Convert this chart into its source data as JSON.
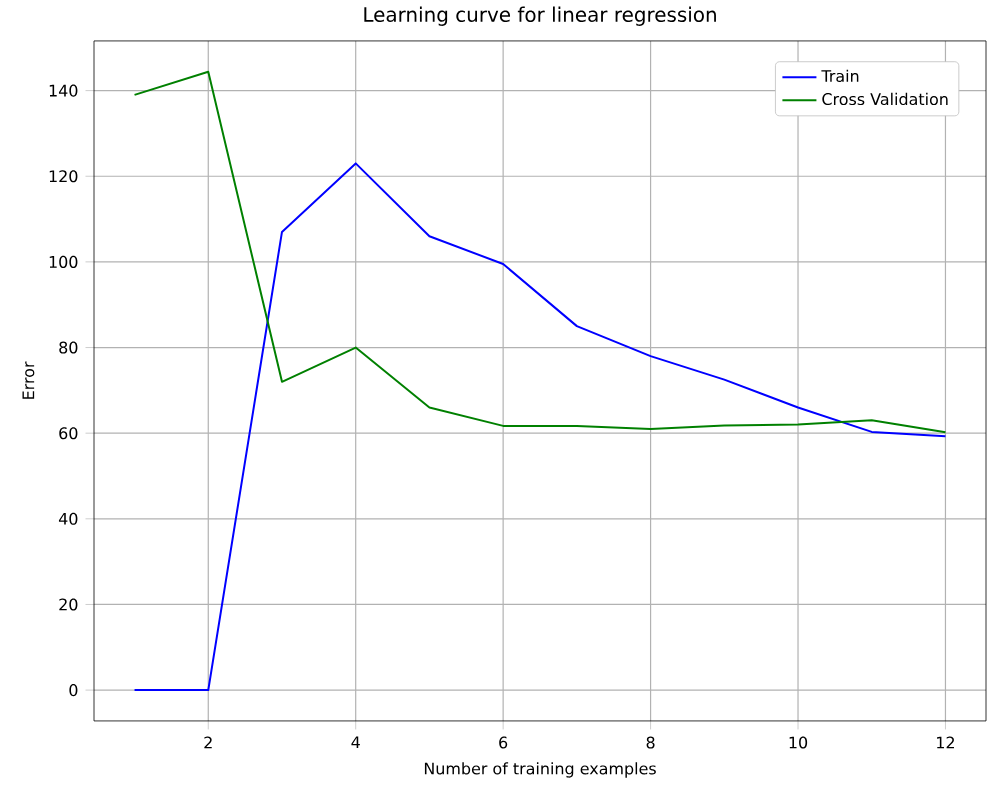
{
  "chart_data": {
    "type": "line",
    "title": "Learning curve for linear regression",
    "xlabel": "Number of training examples",
    "ylabel": "Error",
    "x": [
      1,
      2,
      3,
      4,
      5,
      6,
      7,
      8,
      9,
      10,
      11,
      12
    ],
    "series": [
      {
        "name": "Train",
        "color": "#0000ff",
        "values": [
          0,
          0,
          107,
          123,
          106,
          99.5,
          85,
          78,
          72.5,
          66,
          60.3,
          59.3
        ]
      },
      {
        "name": "Cross Validation",
        "color": "#008000",
        "values": [
          139,
          144.4,
          72,
          80,
          66,
          61.7,
          61.7,
          61,
          61.8,
          62,
          63,
          60.2
        ]
      }
    ],
    "xlim": [
      0.45,
      12.55
    ],
    "ylim": [
      -7.2,
      151.6
    ],
    "xticks": [
      2,
      4,
      6,
      8,
      10,
      12
    ],
    "yticks": [
      0,
      20,
      40,
      60,
      80,
      100,
      120,
      140
    ],
    "grid": true,
    "legend": "top right",
    "marker": "none",
    "line_style": "solid"
  }
}
